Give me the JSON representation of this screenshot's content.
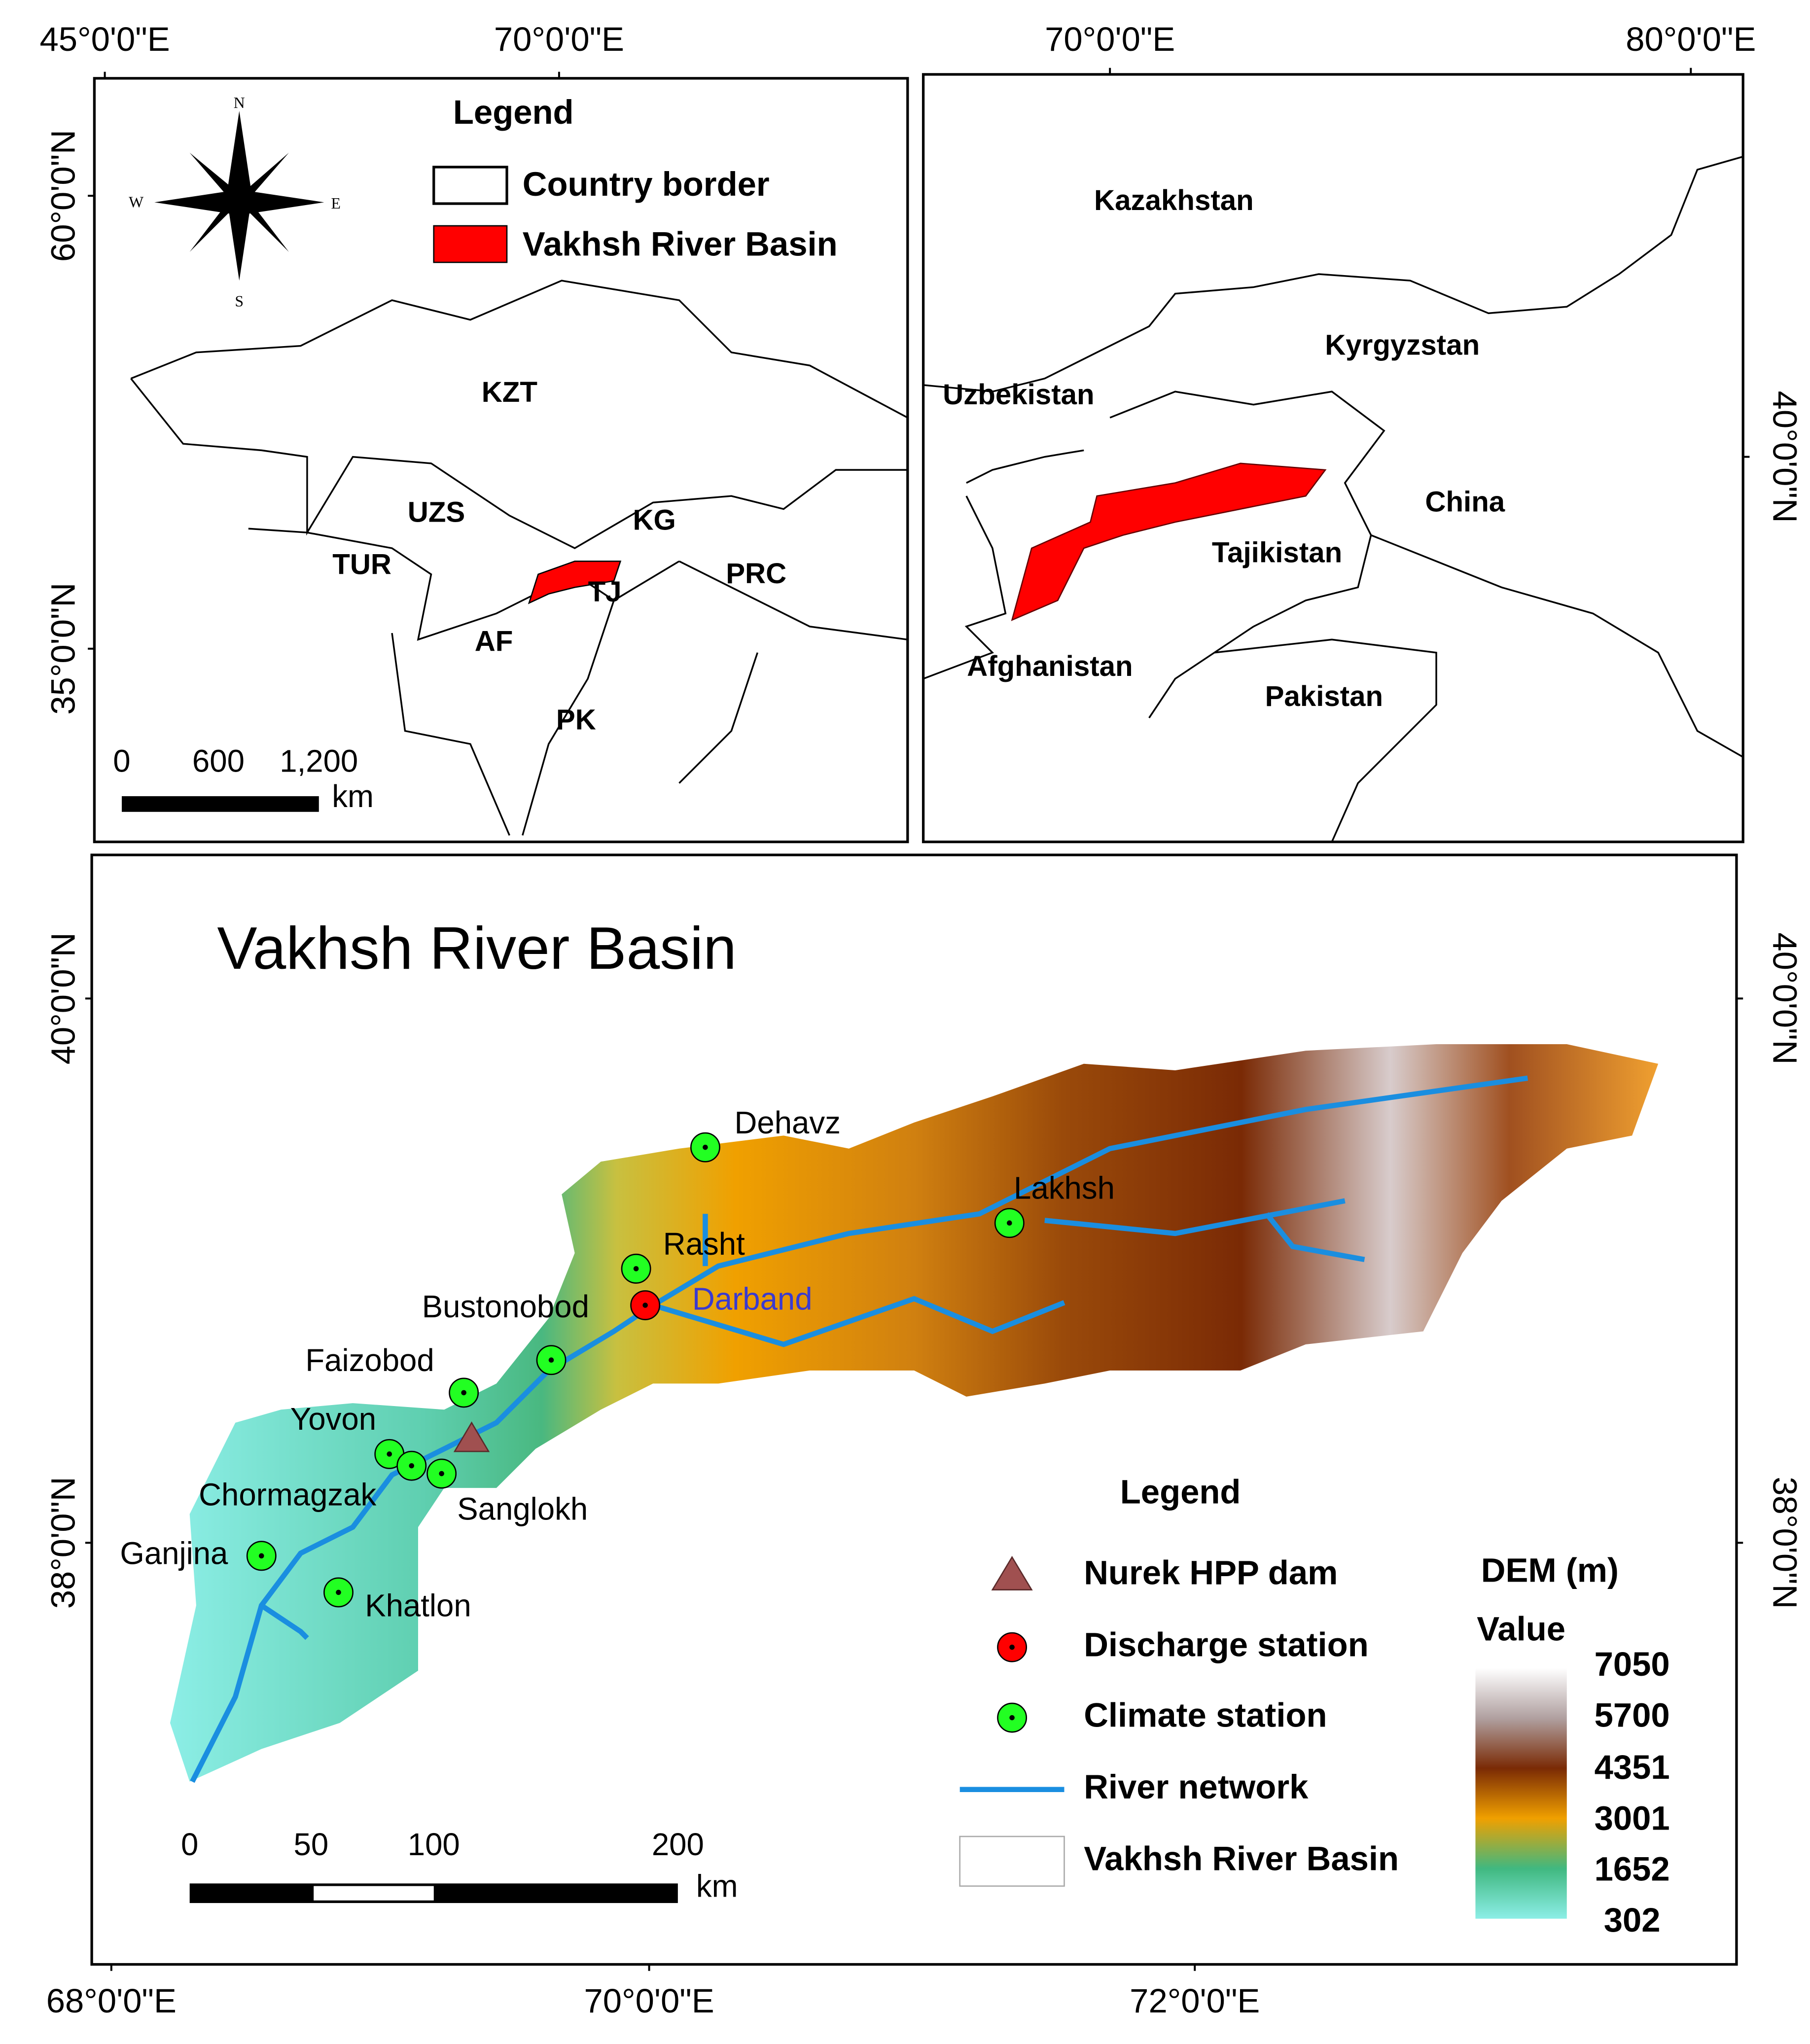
{
  "top_left_map": {
    "x_labels": [
      "45°0'0\"E",
      "70°0'0\"E"
    ],
    "y_labels": [
      "60°0'0\"N",
      "35°0'0\"N"
    ],
    "compass": [
      "N",
      "S",
      "W",
      "E"
    ],
    "legend": {
      "title": "Legend",
      "items": [
        "Country border",
        "Vakhsh River Basin"
      ]
    },
    "countries": [
      "KZT",
      "UZS",
      "KG",
      "TUR",
      "TJ",
      "PRC",
      "AF",
      "PK"
    ],
    "scale": {
      "labels": [
        "0",
        "600",
        "1,200"
      ],
      "unit": "km"
    }
  },
  "top_right_map": {
    "x_labels": [
      "70°0'0\"E",
      "80°0'0\"E"
    ],
    "y_labels": [
      "40°0'0\"N"
    ],
    "countries": [
      "Kazakhstan",
      "Kyrgyzstan",
      "Uzbekistan",
      "China",
      "Tajikistan",
      "Afghanistan",
      "Pakistan"
    ]
  },
  "main_map": {
    "title": "Vakhsh River Basin",
    "x_labels": [
      "68°0'0\"E",
      "70°0'0\"E",
      "72°0'0\"E"
    ],
    "y_labels_left": [
      "40°0'0\"N",
      "38°0'0\"N"
    ],
    "y_labels_right": [
      "40°0'0\"N",
      "38°0'0\"N"
    ],
    "stations": [
      "Dehavz",
      "Lakhsh",
      "Rasht",
      "Darband",
      "Bustonobod",
      "Faizobod",
      "Yovon",
      "Chormagzak",
      "Sanglokh",
      "Ganjina",
      "Khatlon"
    ],
    "legend": {
      "title": "Legend",
      "items": [
        "Nurek  HPP dam",
        "Discharge station",
        "Climate station",
        "River network",
        "Vakhsh River Basin"
      ]
    },
    "dem": {
      "title": "DEM (m)",
      "subtitle": "Value",
      "values": [
        7050,
        5700,
        4351,
        3001,
        1652,
        302
      ]
    },
    "scale": {
      "labels": [
        "0",
        "50",
        "100",
        "200"
      ],
      "unit": "km"
    }
  }
}
